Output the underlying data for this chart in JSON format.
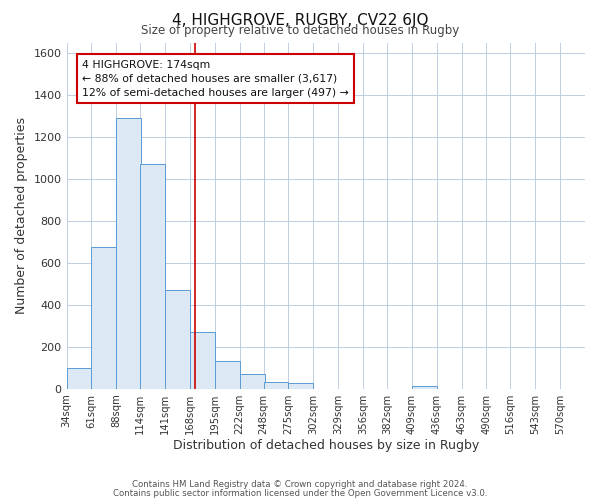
{
  "title": "4, HIGHGROVE, RUGBY, CV22 6JQ",
  "subtitle": "Size of property relative to detached houses in Rugby",
  "xlabel": "Distribution of detached houses by size in Rugby",
  "ylabel": "Number of detached properties",
  "bar_labels": [
    "34sqm",
    "61sqm",
    "88sqm",
    "114sqm",
    "141sqm",
    "168sqm",
    "195sqm",
    "222sqm",
    "248sqm",
    "275sqm",
    "302sqm",
    "329sqm",
    "356sqm",
    "382sqm",
    "409sqm",
    "436sqm",
    "463sqm",
    "490sqm",
    "516sqm",
    "543sqm",
    "570sqm"
  ],
  "bar_values": [
    100,
    675,
    1290,
    1070,
    470,
    270,
    130,
    72,
    30,
    25,
    0,
    0,
    0,
    0,
    15,
    0,
    0,
    0,
    0,
    0,
    0
  ],
  "bar_color_fill": "#dce9f5",
  "bar_color_edge": "#5b9bd5",
  "ylim": [
    0,
    1650
  ],
  "yticks": [
    0,
    200,
    400,
    600,
    800,
    1000,
    1200,
    1400,
    1600
  ],
  "bin_starts": [
    34,
    61,
    88,
    114,
    141,
    168,
    195,
    222,
    248,
    275,
    302,
    329,
    356,
    382,
    409,
    436,
    463,
    490,
    516,
    543,
    570
  ],
  "bin_width": 27,
  "annotation_title": "4 HIGHGROVE: 174sqm",
  "annotation_line1": "← 88% of detached houses are smaller (3,617)",
  "annotation_line2": "12% of semi-detached houses are larger (497) →",
  "annotation_box_color": "#ffffff",
  "annotation_box_edge": "#cc0000",
  "footer1": "Contains HM Land Registry data © Crown copyright and database right 2024.",
  "footer2": "Contains public sector information licensed under the Open Government Licence v3.0.",
  "red_line_color": "#cc0000",
  "background_color": "#ffffff",
  "grid_color": "#c0cfe0",
  "red_line_xdata": 174
}
